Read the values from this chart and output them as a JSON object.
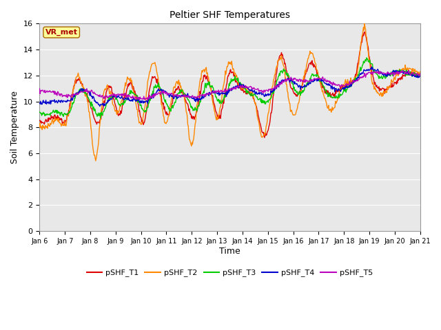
{
  "title": "Peltier SHF Temperatures",
  "xlabel": "Time",
  "ylabel": "Soil Temperature",
  "ylim": [
    0,
    16
  ],
  "yticks": [
    0,
    2,
    4,
    6,
    8,
    10,
    12,
    14,
    16
  ],
  "plot_bg": "#e8e8e8",
  "fig_bg": "#ffffff",
  "legend_labels": [
    "pSHF_T1",
    "pSHF_T2",
    "pSHF_T3",
    "pSHF_T4",
    "pSHF_T5"
  ],
  "legend_colors": [
    "#dd0000",
    "#ff8800",
    "#00cc00",
    "#0000cc",
    "#bb00bb"
  ],
  "annotation_text": "VR_met",
  "annotation_color": "#aa0000",
  "annotation_bg": "#ffff99",
  "annotation_edge": "#aa6600",
  "x_tick_labels": [
    "Jan 6",
    "Jan 7",
    "Jan 8",
    "Jan 9",
    "Jan 10",
    "Jan 11",
    "Jan 12",
    "Jan 13",
    "Jan 14",
    "Jan 15",
    "Jan 16",
    "Jan 17",
    "Jan 18",
    "Jan 19",
    "Jan 20",
    "Jan 21"
  ],
  "n_points": 720
}
